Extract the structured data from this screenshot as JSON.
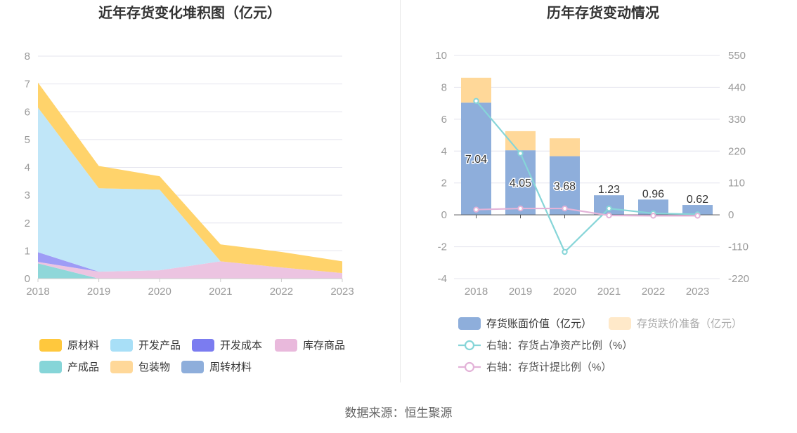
{
  "source_text": "数据来源：恒生聚源",
  "chart_data": [
    {
      "type": "area",
      "stacked": true,
      "title": "近年存货变化堆积图（亿元）",
      "categories": [
        "2018",
        "2019",
        "2020",
        "2021",
        "2022",
        "2023"
      ],
      "ylim": [
        0,
        8
      ],
      "yticks": [
        0,
        1,
        2,
        3,
        4,
        5,
        6,
        7,
        8
      ],
      "grid": true,
      "legend_position": "bottom",
      "series": [
        {
          "name": "产成品",
          "color": "#8fd7d9",
          "values": [
            0.55,
            0.0,
            0.0,
            0.0,
            0.0,
            0.0
          ]
        },
        {
          "name": "库存商品",
          "color": "#ecc4e1",
          "values": [
            0.05,
            0.25,
            0.3,
            0.62,
            0.4,
            0.2
          ]
        },
        {
          "name": "开发成本",
          "color": "#9e9cf6",
          "values": [
            0.35,
            0.0,
            0.0,
            0.0,
            0.0,
            0.0
          ]
        },
        {
          "name": "开发产品",
          "color": "#c0e6f8",
          "values": [
            5.2,
            3.0,
            2.9,
            0.0,
            0.0,
            0.0
          ]
        },
        {
          "name": "原材料",
          "color": "#ffd36b",
          "values": [
            0.9,
            0.8,
            0.48,
            0.61,
            0.56,
            0.42
          ]
        }
      ],
      "legend": [
        {
          "name": "原材料",
          "color": "#ffc83d"
        },
        {
          "name": "开发产品",
          "color": "#a8dff7"
        },
        {
          "name": "开发成本",
          "color": "#7b7cf0"
        },
        {
          "name": "库存商品",
          "color": "#e9b9dc"
        },
        {
          "name": "产成品",
          "color": "#86d5d8"
        },
        {
          "name": "包装物",
          "color": "#ffd899"
        },
        {
          "name": "周转材料",
          "color": "#8eaedb"
        }
      ]
    },
    {
      "type": "bar",
      "stacked": true,
      "title": "历年存货变动情况",
      "categories": [
        "2018",
        "2019",
        "2020",
        "2021",
        "2022",
        "2023"
      ],
      "ylim": [
        -4,
        10
      ],
      "yticks": [
        -4,
        -2,
        0,
        2,
        4,
        6,
        8,
        10
      ],
      "y2lim": [
        -220,
        550
      ],
      "y2ticks": [
        -220,
        -110,
        0,
        110,
        220,
        330,
        440,
        550
      ],
      "grid": true,
      "legend_position": "bottom",
      "series": [
        {
          "name": "存货账面价值（亿元）",
          "color": "#8eaedb",
          "axis": "left",
          "kind": "bar",
          "values": [
            7.04,
            4.05,
            3.68,
            1.23,
            0.96,
            0.62
          ],
          "labels": [
            "7.04",
            "4.05",
            "3.68",
            "1.23",
            "0.96",
            "0.62"
          ]
        },
        {
          "name": "存货跌价准备（亿元）",
          "color": "#ffd899",
          "axis": "left",
          "kind": "bar",
          "values": [
            1.56,
            1.2,
            1.12,
            0.0,
            0.0,
            0.0
          ]
        },
        {
          "name": "右轴：存货占净资产比例（%）",
          "color": "#86d5d8",
          "axis": "right",
          "kind": "line",
          "values": [
            393,
            212,
            -128,
            22,
            5,
            2
          ]
        },
        {
          "name": "右轴：存货计提比例（%）",
          "color": "#e3b3d8",
          "axis": "right",
          "kind": "line",
          "values": [
            18,
            22,
            22,
            -2,
            -3,
            -3
          ]
        }
      ]
    }
  ]
}
